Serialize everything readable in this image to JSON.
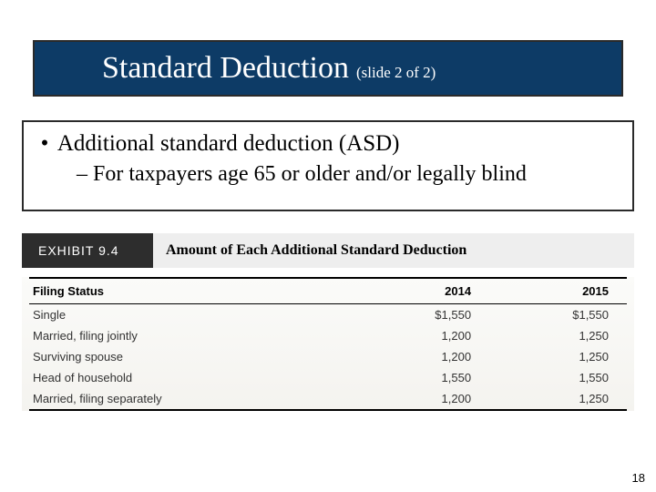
{
  "header": {
    "title": "Standard Deduction",
    "subtitle": "(slide 2 of 2)"
  },
  "bullets": {
    "main": "Additional standard deduction (ASD)",
    "sub": "– For taxpayers age 65 or older and/or legally blind"
  },
  "exhibit": {
    "label": "EXHIBIT 9.4",
    "title": "Amount of Each Additional Standard Deduction",
    "columns": {
      "status": "Filing Status",
      "y2014": "2014",
      "y2015": "2015"
    },
    "rows": [
      {
        "status": "Single",
        "y2014": "$1,550",
        "y2015": "$1,550"
      },
      {
        "status": "Married, filing jointly",
        "y2014": "1,200",
        "y2015": "1,250"
      },
      {
        "status": "Surviving spouse",
        "y2014": "1,200",
        "y2015": "1,250"
      },
      {
        "status": "Head of household",
        "y2014": "1,550",
        "y2015": "1,550"
      },
      {
        "status": "Married, filing separately",
        "y2014": "1,200",
        "y2015": "1,250"
      }
    ]
  },
  "page_number": "18",
  "colors": {
    "title_bg": "#0d3b66",
    "border": "#2a2a2a",
    "exhibit_label_bg": "#2d2d2d",
    "exhibit_title_bg": "#eeeeee"
  }
}
